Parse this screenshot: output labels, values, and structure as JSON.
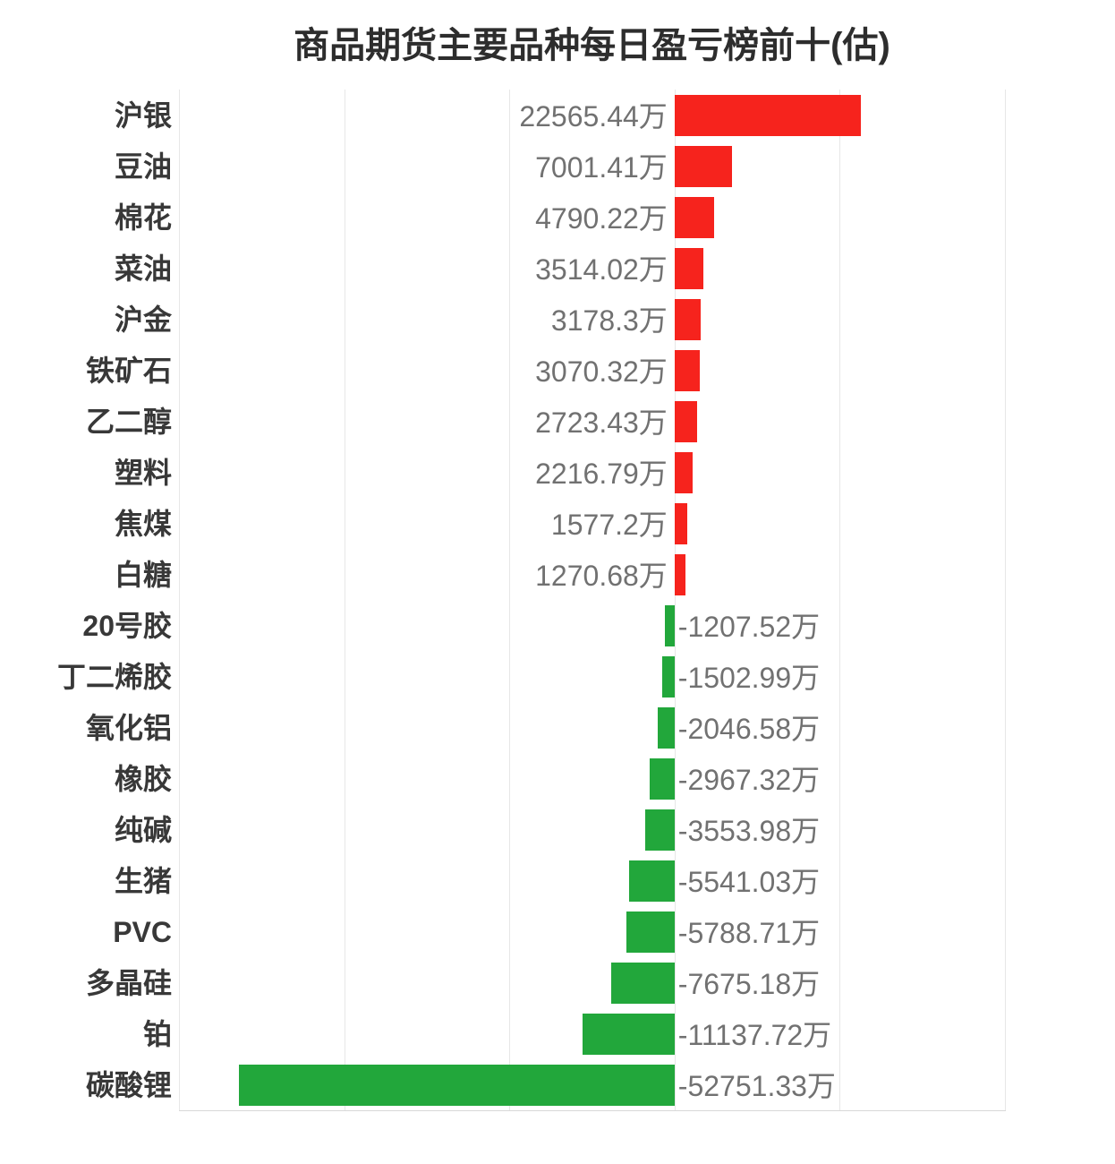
{
  "chart_data": {
    "type": "bar",
    "orientation": "horizontal",
    "title": "商品期货主要品种每日盈亏榜前十(估)",
    "unit": "万",
    "categories": [
      "沪银",
      "豆油",
      "棉花",
      "菜油",
      "沪金",
      "铁矿石",
      "乙二醇",
      "塑料",
      "焦煤",
      "白糖",
      "20号胶",
      "丁二烯胶",
      "氧化铝",
      "橡胶",
      "纯碱",
      "生猪",
      "PVC",
      "多晶硅",
      "铂",
      "碳酸锂"
    ],
    "values": [
      22565.44,
      7001.41,
      4790.22,
      3514.02,
      3178.3,
      3070.32,
      2723.43,
      2216.79,
      1577.2,
      1270.68,
      -1207.52,
      -1502.99,
      -2046.58,
      -2967.32,
      -3553.98,
      -5541.03,
      -5788.71,
      -7675.18,
      -11137.72,
      -52751.33
    ],
    "value_labels": [
      "22565.44万",
      "7001.41万",
      "4790.22万",
      "3514.02万",
      "3178.3万",
      "3070.32万",
      "2723.43万",
      "2216.79万",
      "1577.2万",
      "1270.68万",
      "-1207.52万",
      "-1502.99万",
      "-2046.58万",
      "-2967.32万",
      "-3553.98万",
      "-5541.03万",
      "-5788.71万",
      "-7675.18万",
      "-11137.72万",
      "-52751.33万"
    ],
    "xlim": [
      -60000,
      40000
    ],
    "gridline_interval": 20000,
    "grid": true,
    "legend": null,
    "xlabel": "",
    "ylabel": "",
    "colors": {
      "positive_bar": "#f6231d",
      "negative_bar": "#22a73b",
      "title": "#2d2d2d",
      "category_label": "#383838",
      "value_label": "#717171",
      "gridline": "#e7e7e7",
      "axis_line": "#d8d8d8",
      "background": "#ffffff"
    }
  }
}
